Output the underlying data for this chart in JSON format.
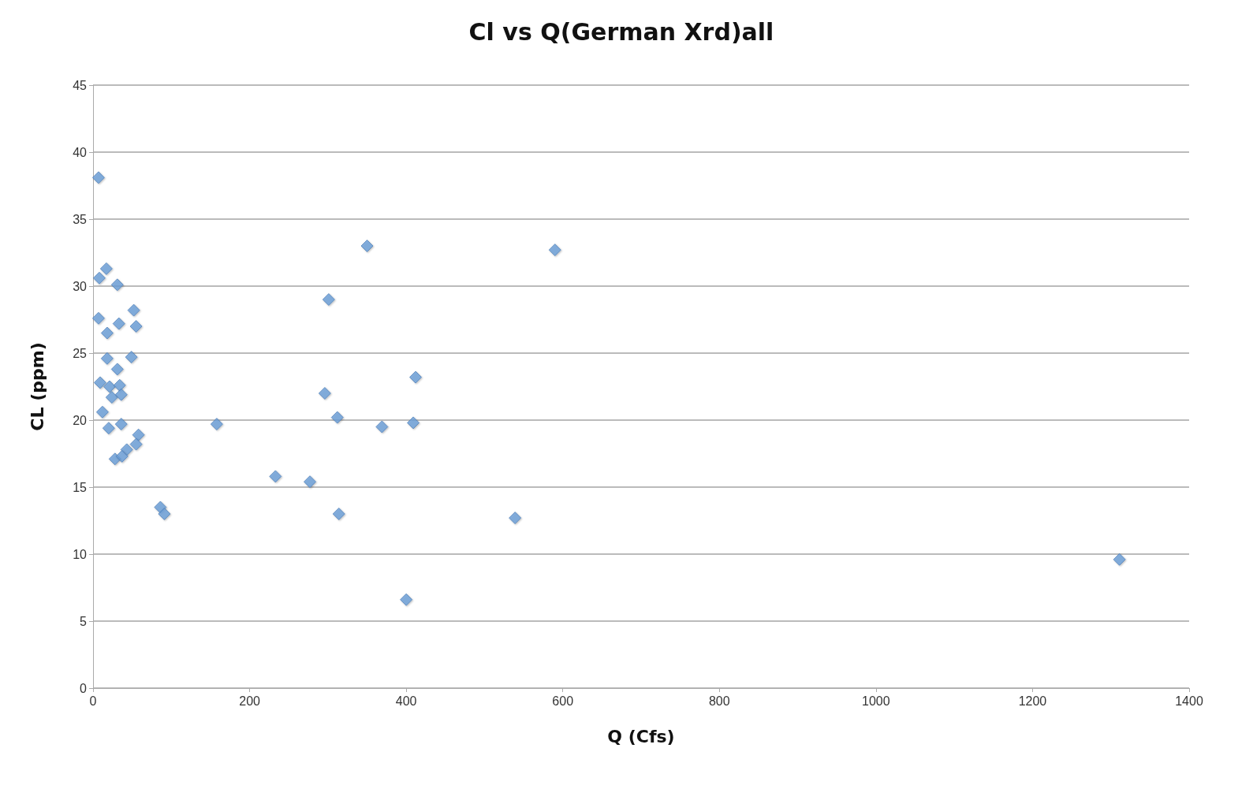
{
  "chart_data": {
    "type": "scatter",
    "title": "Cl vs Q(German Xrd)all",
    "xlabel": "Q (Cfs)",
    "ylabel": "CL (ppm)",
    "x": [
      7,
      17,
      8,
      31,
      7,
      33,
      52,
      55,
      18,
      18,
      49,
      31,
      9,
      21,
      34,
      24,
      36,
      12,
      20,
      36,
      58,
      55,
      43,
      28,
      37,
      86,
      91,
      158,
      233,
      277,
      296,
      301,
      312,
      314,
      350,
      369,
      400,
      409,
      412,
      539,
      590,
      1311
    ],
    "series": [
      {
        "color": "#6a9fd8",
        "values": [
          38.1,
          31.3,
          30.6,
          30.1,
          27.6,
          27.2,
          28.2,
          27.0,
          26.5,
          24.6,
          24.7,
          23.8,
          22.8,
          22.5,
          22.6,
          21.7,
          21.9,
          20.6,
          19.4,
          19.7,
          18.9,
          18.2,
          17.8,
          17.1,
          17.3,
          13.5,
          13.0,
          19.7,
          15.8,
          15.4,
          22.0,
          29.0,
          20.2,
          13.0,
          33.0,
          19.5,
          6.6,
          19.8,
          23.2,
          12.7,
          32.7,
          9.6
        ]
      }
    ],
    "xlim": [
      0,
      1400
    ],
    "xticks": [
      0,
      200,
      400,
      600,
      800,
      1000,
      1200,
      1400
    ],
    "ylim": [
      0,
      45
    ],
    "yticks": [
      0,
      5,
      10,
      15,
      20,
      25,
      30,
      35,
      40,
      45
    ],
    "grid": "y",
    "marker": "diamond"
  }
}
